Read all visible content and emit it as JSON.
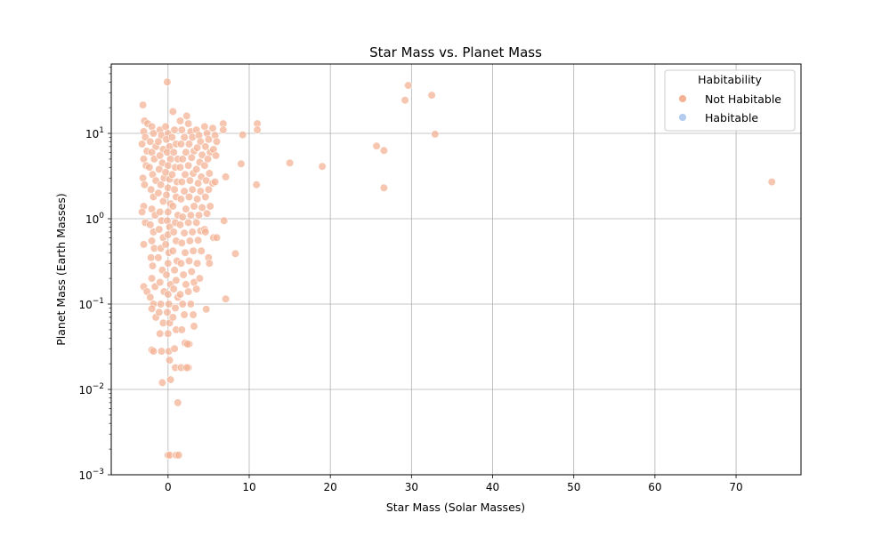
{
  "chart_data": {
    "type": "scatter",
    "title": "Star Mass vs. Planet Mass",
    "xlabel": "Star Mass (Solar Masses)",
    "ylabel": "Planet Mass (Earth Masses)",
    "xlim": [
      -7,
      78
    ],
    "ylim": [
      0.001,
      65
    ],
    "yscale": "log",
    "grid": true,
    "xticks": [
      {
        "value": 0,
        "label": "0"
      },
      {
        "value": 10,
        "label": "10"
      },
      {
        "value": 20,
        "label": "20"
      },
      {
        "value": 30,
        "label": "30"
      },
      {
        "value": 40,
        "label": "40"
      },
      {
        "value": 50,
        "label": "50"
      },
      {
        "value": 60,
        "label": "60"
      },
      {
        "value": 70,
        "label": "70"
      }
    ],
    "yticks": [
      {
        "value": 0.001,
        "label": "10",
        "exp": "−3"
      },
      {
        "value": 0.01,
        "label": "10",
        "exp": "−2"
      },
      {
        "value": 0.1,
        "label": "10",
        "exp": "−1"
      },
      {
        "value": 1,
        "label": "10",
        "exp": "0"
      },
      {
        "value": 10,
        "label": "10",
        "exp": "1"
      }
    ],
    "legend": {
      "title": "Habitability",
      "placement": "top-right",
      "entries": [
        {
          "label": "Not Habitable",
          "color": "#f4b395"
        },
        {
          "label": "Habitable",
          "color": "#b4ccf0"
        }
      ]
    },
    "series": [
      {
        "name": "Not Habitable",
        "color": "#f4b395",
        "points": [
          [
            -3.1,
            21.5
          ],
          [
            -2.9,
            14
          ],
          [
            -2.5,
            13
          ],
          [
            -3.0,
            10.5
          ],
          [
            -2.8,
            9
          ],
          [
            -3.2,
            7.5
          ],
          [
            -2.6,
            6.2
          ],
          [
            -3.0,
            5
          ],
          [
            -2.7,
            4.2
          ],
          [
            -3.1,
            3
          ],
          [
            -2.9,
            2.5
          ],
          [
            -3.0,
            1.4
          ],
          [
            -3.2,
            1.2
          ],
          [
            -2.8,
            0.9
          ],
          [
            -3.0,
            0.5
          ],
          [
            -3.0,
            0.16
          ],
          [
            -2.6,
            0.14
          ],
          [
            -2.0,
            12
          ],
          [
            -1.8,
            10
          ],
          [
            -2.2,
            8
          ],
          [
            -1.5,
            7
          ],
          [
            -2.0,
            6
          ],
          [
            -1.7,
            5
          ],
          [
            -2.3,
            4
          ],
          [
            -1.9,
            3.3
          ],
          [
            -1.5,
            2.8
          ],
          [
            -2.1,
            2.2
          ],
          [
            -1.8,
            1.8
          ],
          [
            -2.0,
            1.3
          ],
          [
            -1.6,
            1.1
          ],
          [
            -2.2,
            0.85
          ],
          [
            -1.8,
            0.7
          ],
          [
            -2.0,
            0.55
          ],
          [
            -1.7,
            0.45
          ],
          [
            -2.1,
            0.35
          ],
          [
            -1.9,
            0.28
          ],
          [
            -2.0,
            0.2
          ],
          [
            -1.6,
            0.16
          ],
          [
            -2.2,
            0.12
          ],
          [
            -1.8,
            0.1
          ],
          [
            -2.0,
            0.088
          ],
          [
            -1.5,
            0.07
          ],
          [
            -2.0,
            0.029
          ],
          [
            -1.8,
            0.028
          ],
          [
            -1.0,
            11
          ],
          [
            -0.8,
            9.5
          ],
          [
            -1.2,
            8
          ],
          [
            -0.6,
            6.5
          ],
          [
            -1.0,
            5.5
          ],
          [
            -0.7,
            4.5
          ],
          [
            -1.1,
            3.8
          ],
          [
            -0.5,
            3
          ],
          [
            -0.9,
            2.5
          ],
          [
            -1.2,
            2
          ],
          [
            -0.6,
            1.6
          ],
          [
            -1.0,
            1.2
          ],
          [
            -0.8,
            0.95
          ],
          [
            -1.1,
            0.75
          ],
          [
            -0.6,
            0.6
          ],
          [
            -0.9,
            0.45
          ],
          [
            -1.2,
            0.35
          ],
          [
            -0.7,
            0.25
          ],
          [
            -1.0,
            0.18
          ],
          [
            -0.5,
            0.14
          ],
          [
            -0.9,
            0.1
          ],
          [
            -1.1,
            0.08
          ],
          [
            -0.6,
            0.06
          ],
          [
            -1.0,
            0.045
          ],
          [
            -0.8,
            0.028
          ],
          [
            -0.7,
            0.012
          ],
          [
            -0.3,
            12
          ],
          [
            0.0,
            10
          ],
          [
            -0.2,
            8.5
          ],
          [
            0.2,
            7
          ],
          [
            -0.1,
            6
          ],
          [
            0.3,
            5
          ],
          [
            0.0,
            4.2
          ],
          [
            -0.3,
            3.5
          ],
          [
            0.2,
            2.9
          ],
          [
            0.0,
            2.3
          ],
          [
            -0.2,
            1.9
          ],
          [
            0.3,
            1.5
          ],
          [
            0.0,
            1.2
          ],
          [
            -0.1,
            0.95
          ],
          [
            0.2,
            0.8
          ],
          [
            0.0,
            0.65
          ],
          [
            -0.3,
            0.5
          ],
          [
            0.1,
            0.4
          ],
          [
            0.0,
            0.3
          ],
          [
            -0.2,
            0.22
          ],
          [
            0.3,
            0.17
          ],
          [
            0.0,
            0.13
          ],
          [
            0.1,
            0.1
          ],
          [
            -0.1,
            0.08
          ],
          [
            0.2,
            0.06
          ],
          [
            0.0,
            0.045
          ],
          [
            0.1,
            0.028
          ],
          [
            0.2,
            0.022
          ],
          [
            0.3,
            0.013
          ],
          [
            0.0,
            0.0017
          ],
          [
            0.2,
            0.0017
          ],
          [
            -0.1,
            40
          ],
          [
            0.6,
            18
          ],
          [
            0.8,
            11
          ],
          [
            0.5,
            9
          ],
          [
            1.0,
            7.5
          ],
          [
            0.7,
            6
          ],
          [
            1.2,
            5
          ],
          [
            0.9,
            4
          ],
          [
            0.5,
            3.3
          ],
          [
            1.1,
            2.7
          ],
          [
            0.8,
            2.2
          ],
          [
            1.0,
            1.8
          ],
          [
            0.6,
            1.4
          ],
          [
            1.2,
            1.1
          ],
          [
            0.9,
            0.9
          ],
          [
            0.7,
            0.7
          ],
          [
            1.0,
            0.55
          ],
          [
            0.6,
            0.42
          ],
          [
            1.1,
            0.32
          ],
          [
            0.8,
            0.25
          ],
          [
            1.0,
            0.19
          ],
          [
            0.7,
            0.15
          ],
          [
            1.2,
            0.12
          ],
          [
            0.9,
            0.09
          ],
          [
            0.6,
            0.07
          ],
          [
            1.0,
            0.05
          ],
          [
            0.8,
            0.03
          ],
          [
            0.9,
            0.018
          ],
          [
            1.2,
            0.007
          ],
          [
            1.0,
            0.0017
          ],
          [
            1.3,
            0.0017
          ],
          [
            1.5,
            14
          ],
          [
            1.7,
            11
          ],
          [
            2.0,
            9
          ],
          [
            1.6,
            7.5
          ],
          [
            2.2,
            6
          ],
          [
            1.8,
            5
          ],
          [
            1.5,
            4
          ],
          [
            2.1,
            3.3
          ],
          [
            1.7,
            2.7
          ],
          [
            2.0,
            2.1
          ],
          [
            1.6,
            1.7
          ],
          [
            2.2,
            1.3
          ],
          [
            1.8,
            1.05
          ],
          [
            1.5,
            0.85
          ],
          [
            2.0,
            0.68
          ],
          [
            1.7,
            0.52
          ],
          [
            2.1,
            0.4
          ],
          [
            1.6,
            0.3
          ],
          [
            1.9,
            0.22
          ],
          [
            2.2,
            0.17
          ],
          [
            1.5,
            0.13
          ],
          [
            1.8,
            0.1
          ],
          [
            2.0,
            0.075
          ],
          [
            1.7,
            0.05
          ],
          [
            2.1,
            0.035
          ],
          [
            1.6,
            0.018
          ],
          [
            2.3,
            16
          ],
          [
            2.5,
            13
          ],
          [
            2.8,
            10.5
          ],
          [
            3.0,
            9
          ],
          [
            2.6,
            7.5
          ],
          [
            3.2,
            6.2
          ],
          [
            2.9,
            5.2
          ],
          [
            2.5,
            4.2
          ],
          [
            3.1,
            3.4
          ],
          [
            2.7,
            2.8
          ],
          [
            3.0,
            2.2
          ],
          [
            2.6,
            1.8
          ],
          [
            3.2,
            1.4
          ],
          [
            2.8,
            1.1
          ],
          [
            2.5,
            0.9
          ],
          [
            3.0,
            0.7
          ],
          [
            2.7,
            0.55
          ],
          [
            3.1,
            0.42
          ],
          [
            2.6,
            0.32
          ],
          [
            2.9,
            0.24
          ],
          [
            3.2,
            0.18
          ],
          [
            2.5,
            0.14
          ],
          [
            2.8,
            0.1
          ],
          [
            3.1,
            0.075
          ],
          [
            3.2,
            0.055
          ],
          [
            2.6,
            0.034
          ],
          [
            2.5,
            0.018
          ],
          [
            2.3,
            0.018
          ],
          [
            2.4,
            0.034
          ],
          [
            3.5,
            11
          ],
          [
            3.8,
            9.5
          ],
          [
            4.0,
            8
          ],
          [
            3.6,
            6.8
          ],
          [
            4.2,
            5.6
          ],
          [
            3.9,
            4.6
          ],
          [
            3.5,
            3.8
          ],
          [
            4.1,
            3.1
          ],
          [
            3.7,
            2.6
          ],
          [
            4.0,
            2.1
          ],
          [
            3.6,
            1.7
          ],
          [
            4.2,
            1.35
          ],
          [
            3.8,
            1.1
          ],
          [
            3.5,
            0.9
          ],
          [
            4.0,
            0.72
          ],
          [
            3.7,
            0.56
          ],
          [
            4.1,
            0.42
          ],
          [
            3.6,
            0.3
          ],
          [
            3.9,
            0.2
          ],
          [
            3.5,
            0.15
          ],
          [
            4.5,
            12
          ],
          [
            4.8,
            10
          ],
          [
            5.0,
            8.5
          ],
          [
            4.6,
            7
          ],
          [
            5.2,
            6
          ],
          [
            4.9,
            5
          ],
          [
            4.5,
            4.2
          ],
          [
            5.1,
            3.4
          ],
          [
            4.7,
            2.8
          ],
          [
            5.0,
            2.2
          ],
          [
            4.6,
            1.8
          ],
          [
            5.2,
            1.4
          ],
          [
            4.8,
            1.15
          ],
          [
            4.5,
            0.75
          ],
          [
            5.0,
            0.35
          ],
          [
            4.7,
            0.087
          ],
          [
            5.1,
            0.3
          ],
          [
            4.6,
            0.7
          ],
          [
            5.5,
            11.5
          ],
          [
            5.8,
            9.5
          ],
          [
            6.0,
            8
          ],
          [
            5.6,
            6.5
          ],
          [
            5.9,
            5.5
          ],
          [
            5.5,
            2.6
          ],
          [
            5.8,
            2.7
          ],
          [
            5.6,
            0.6
          ],
          [
            6.0,
            0.6
          ],
          [
            6.8,
            13
          ],
          [
            6.8,
            11
          ],
          [
            7.1,
            3.1
          ],
          [
            6.9,
            0.95
          ],
          [
            7.1,
            0.115
          ],
          [
            8.3,
            0.39
          ],
          [
            9.0,
            4.4
          ],
          [
            9.2,
            9.6
          ],
          [
            11.0,
            13
          ],
          [
            11.0,
            11
          ],
          [
            10.9,
            2.5
          ],
          [
            15.0,
            4.5
          ],
          [
            19.0,
            4.1
          ],
          [
            25.7,
            7.1
          ],
          [
            26.6,
            6.3
          ],
          [
            26.6,
            2.3
          ],
          [
            29.2,
            24.5
          ],
          [
            29.6,
            36.5
          ],
          [
            32.5,
            28
          ],
          [
            32.9,
            9.8
          ],
          [
            74.4,
            2.7
          ]
        ]
      },
      {
        "name": "Habitable",
        "color": "#b4ccf0",
        "points": []
      }
    ]
  }
}
